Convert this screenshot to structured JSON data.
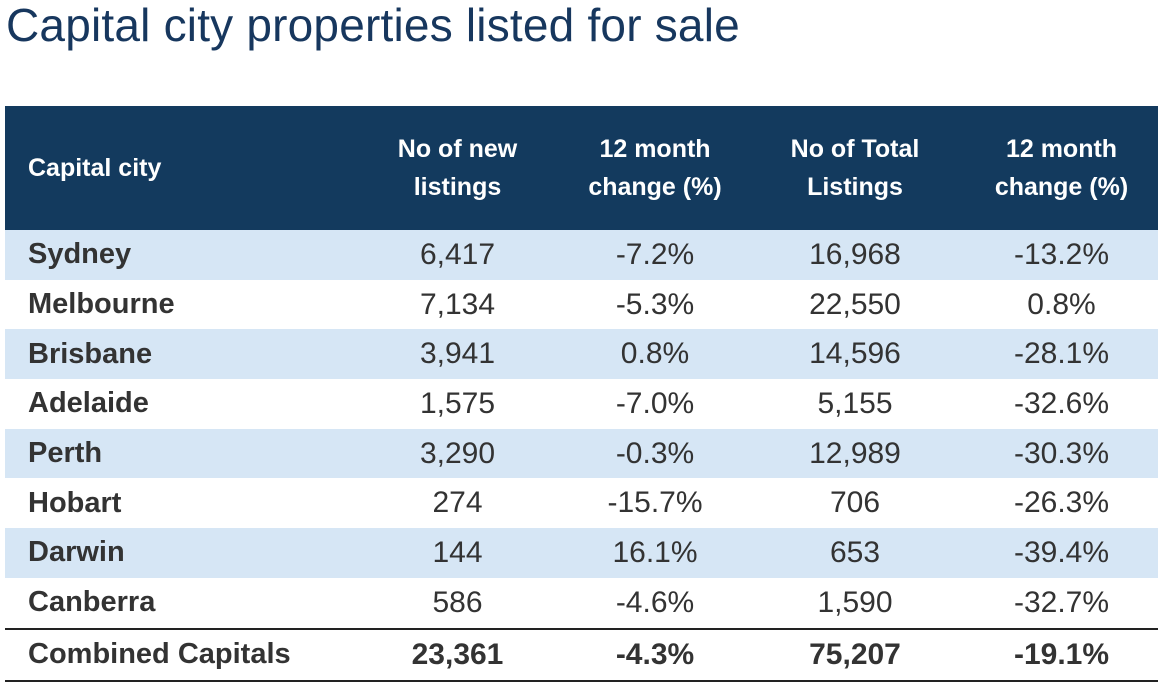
{
  "title": "Capital city properties listed for sale",
  "table": {
    "headers": {
      "city": "Capital city",
      "new_listings_l1": "No of new",
      "new_listings_l2": "listings",
      "new_change_l1": "12 month",
      "new_change_l2": "change (%)",
      "total_listings_l1": "No of Total",
      "total_listings_l2": "Listings",
      "total_change_l1": "12 month",
      "total_change_l2": "change (%)"
    },
    "rows": [
      {
        "city": "Sydney",
        "new_listings": "6,417",
        "new_change": "-7.2%",
        "total_listings": "16,968",
        "total_change": "-13.2%"
      },
      {
        "city": "Melbourne",
        "new_listings": "7,134",
        "new_change": "-5.3%",
        "total_listings": "22,550",
        "total_change": "0.8%"
      },
      {
        "city": "Brisbane",
        "new_listings": "3,941",
        "new_change": "0.8%",
        "total_listings": "14,596",
        "total_change": "-28.1%"
      },
      {
        "city": "Adelaide",
        "new_listings": "1,575",
        "new_change": "-7.0%",
        "total_listings": "5,155",
        "total_change": "-32.6%"
      },
      {
        "city": "Perth",
        "new_listings": "3,290",
        "new_change": "-0.3%",
        "total_listings": "12,989",
        "total_change": "-30.3%"
      },
      {
        "city": "Hobart",
        "new_listings": "274",
        "new_change": "-15.7%",
        "total_listings": "706",
        "total_change": "-26.3%"
      },
      {
        "city": "Darwin",
        "new_listings": "144",
        "new_change": "16.1%",
        "total_listings": "653",
        "total_change": "-39.4%"
      },
      {
        "city": "Canberra",
        "new_listings": "586",
        "new_change": "-4.6%",
        "total_listings": "1,590",
        "total_change": "-32.7%"
      }
    ],
    "total": {
      "city": "Combined Capitals",
      "new_listings": "23,361",
      "new_change": "-4.3%",
      "total_listings": "75,207",
      "total_change": "-19.1%"
    }
  },
  "colors": {
    "title": "#17375e",
    "header_bg": "#133a5e",
    "header_text": "#ffffff",
    "alt_row_bg": "#d6e6f5",
    "body_text": "#333333"
  }
}
